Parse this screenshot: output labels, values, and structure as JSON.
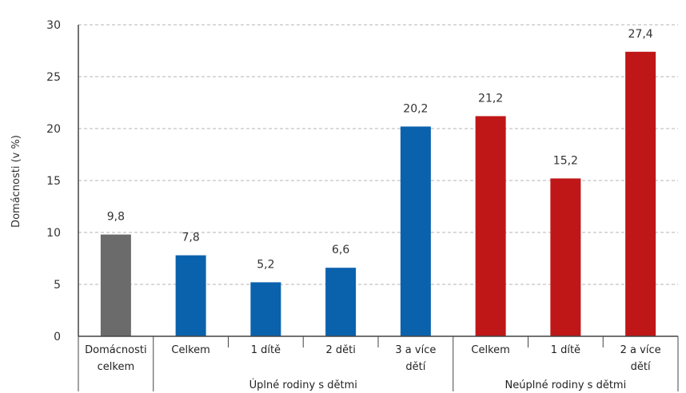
{
  "chart_data": {
    "type": "bar",
    "ylabel": "Domácnosti (v %)",
    "ylim": [
      0,
      30
    ],
    "yticks": [
      0,
      5,
      10,
      15,
      20,
      25,
      30
    ],
    "grid": true,
    "categories": [
      [
        "Domácnosti",
        "celkem"
      ],
      [
        "Celkem"
      ],
      [
        "1 dítě"
      ],
      [
        "2 děti"
      ],
      [
        "3 a více",
        "dětí"
      ],
      [
        "Celkem"
      ],
      [
        "1 dítě"
      ],
      [
        "2 a více",
        "dětí"
      ]
    ],
    "values": [
      9.8,
      7.8,
      5.2,
      6.6,
      20.2,
      21.2,
      15.2,
      27.4
    ],
    "value_labels": [
      "9,8",
      "7,8",
      "5,2",
      "6,6",
      "20,2",
      "21,2",
      "15,2",
      "27,4"
    ],
    "colors": [
      "#6b6b6b",
      "#0a62ad",
      "#0a62ad",
      "#0a62ad",
      "#0a62ad",
      "#bf1717",
      "#bf1717",
      "#bf1717"
    ],
    "groups": [
      {
        "label": "Úplné rodiny s dětmi",
        "start": 1,
        "end": 4
      },
      {
        "label": "Neúplné rodiny s dětmi",
        "start": 5,
        "end": 7
      }
    ]
  }
}
